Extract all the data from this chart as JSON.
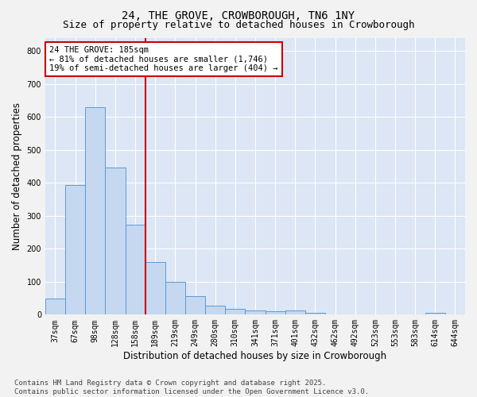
{
  "title1": "24, THE GROVE, CROWBOROUGH, TN6 1NY",
  "title2": "Size of property relative to detached houses in Crowborough",
  "xlabel": "Distribution of detached houses by size in Crowborough",
  "ylabel": "Number of detached properties",
  "categories": [
    "37sqm",
    "67sqm",
    "98sqm",
    "128sqm",
    "158sqm",
    "189sqm",
    "219sqm",
    "249sqm",
    "280sqm",
    "310sqm",
    "341sqm",
    "371sqm",
    "401sqm",
    "432sqm",
    "462sqm",
    "492sqm",
    "523sqm",
    "553sqm",
    "583sqm",
    "614sqm",
    "644sqm"
  ],
  "values": [
    50,
    393,
    630,
    446,
    272,
    160,
    100,
    57,
    28,
    18,
    14,
    11,
    14,
    5,
    0,
    0,
    0,
    0,
    0,
    6,
    0
  ],
  "bar_color": "#c5d8f0",
  "bar_edge_color": "#5b9bd5",
  "vline_color": "#cc0000",
  "vline_x_index": 5,
  "annotation_line1": "24 THE GROVE: 185sqm",
  "annotation_line2": "← 81% of detached houses are smaller (1,746)",
  "annotation_line3": "19% of semi-detached houses are larger (404) →",
  "annotation_box_color": "#cc0000",
  "ylim": [
    0,
    840
  ],
  "yticks": [
    0,
    100,
    200,
    300,
    400,
    500,
    600,
    700,
    800
  ],
  "plot_bg_color": "#dce6f5",
  "fig_bg_color": "#f2f2f2",
  "grid_color": "#ffffff",
  "footnote": "Contains HM Land Registry data © Crown copyright and database right 2025.\nContains public sector information licensed under the Open Government Licence v3.0.",
  "title_fontsize": 10,
  "subtitle_fontsize": 9,
  "axis_label_fontsize": 8.5,
  "tick_fontsize": 7,
  "annotation_fontsize": 7.5,
  "footnote_fontsize": 6.5
}
